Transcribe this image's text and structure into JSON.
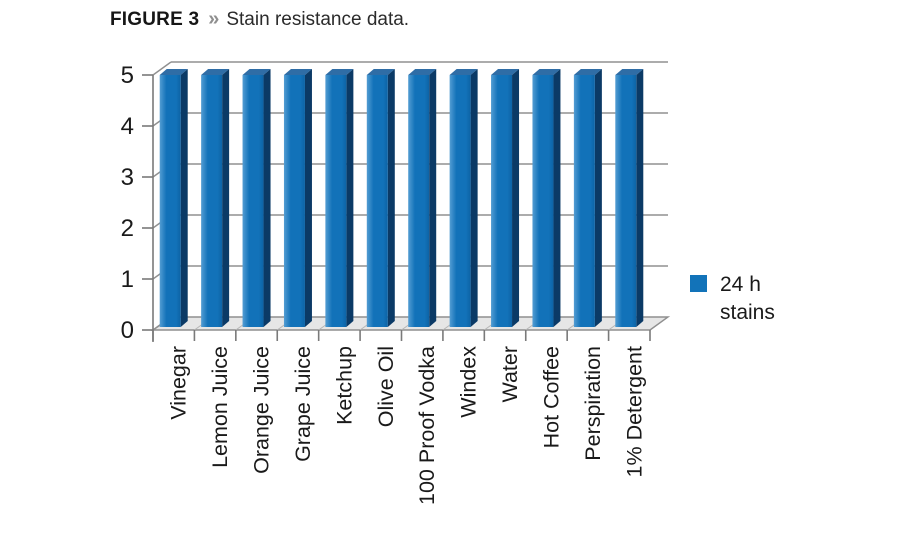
{
  "figure": {
    "label": "FIGURE 3",
    "separator": "»",
    "caption": "Stain resistance data."
  },
  "chart_data": {
    "type": "bar",
    "style": "3d-column",
    "title": "Stain resistance data",
    "categories": [
      "Vinegar",
      "Lemon Juice",
      "Orange Juice",
      "Grape Juice",
      "Ketchup",
      "Olive Oil",
      "100 Proof Vodka",
      "Windex",
      "Water",
      "Hot Coffee",
      "Perspiration",
      "1% Detergent"
    ],
    "series": [
      {
        "name": "24 h stains",
        "values": [
          5,
          5,
          5,
          5,
          5,
          5,
          5,
          5,
          5,
          5,
          5,
          5
        ]
      }
    ],
    "xlabel": "",
    "ylabel": "",
    "ylim": [
      0,
      5
    ],
    "yticks": [
      0,
      1,
      2,
      3,
      4,
      5
    ],
    "grid": true,
    "legend": {
      "position": "right",
      "label_lines": [
        "24 h",
        "stains"
      ],
      "swatch_color": "#1273b9"
    },
    "colors": {
      "bar_front": "#1272b9",
      "bar_highlight": "#539dd3",
      "bar_front_dark": "#0d63a5",
      "bar_side": "#0b3a66",
      "bar_top": "#2f6da6",
      "grid": "#909090",
      "axis": "#7a7a7a",
      "floor": "#e6e6e6",
      "floor_edge": "#8f8f8f",
      "text": "#1a1a1a"
    }
  }
}
